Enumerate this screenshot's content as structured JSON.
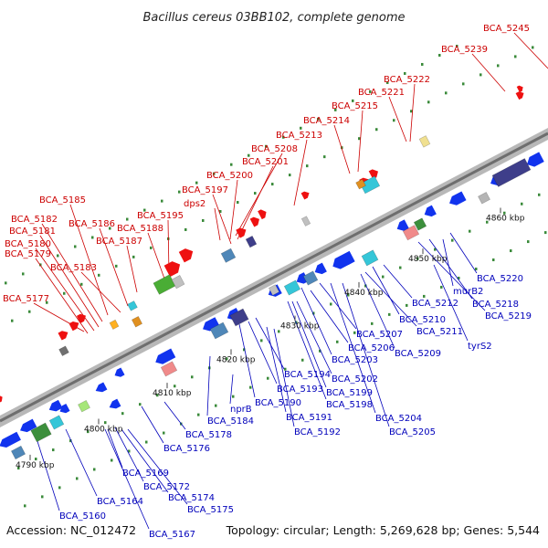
{
  "title": "Bacillus cereus 03BB102, complete genome",
  "footer": {
    "accession": "Accession: NC_012472",
    "summary": "Topology: circular; Length: 5,269,628 bp; Genes: 5,544"
  },
  "colors": {
    "top_labels": "#cc0000",
    "bottom_labels": "#0000bb",
    "backbone": "#888888",
    "forward_gene": "#ee1111",
    "reverse_gene": "#1133ee"
  },
  "kbp_ticks": [
    "4790 kbp",
    "4800 kbp",
    "4810 kbp",
    "4820 kbp",
    "4830 kbp",
    "4840 kbp",
    "4850 kbp",
    "4860 kbp"
  ],
  "top_labels": [
    "BCA_5245",
    "BCA_5239",
    "BCA_5222",
    "BCA_5221",
    "BCA_5215",
    "BCA_5214",
    "BCA_5213",
    "BCA_5208",
    "BCA_5201",
    "BCA_5200",
    "BCA_5197",
    "dps2",
    "BCA_5195",
    "BCA_5188",
    "BCA_5187",
    "BCA_5186",
    "BCA_5185",
    "BCA_5182",
    "BCA_5181",
    "BCA_5180",
    "BCA_5179",
    "BCA_5183",
    "BCA_5177"
  ],
  "bottom_labels": [
    "BCA_5220",
    "murB2",
    "BCA_5218",
    "BCA_5219",
    "BCA_5212",
    "BCA_5210",
    "BCA_5211",
    "tyrS2",
    "BCA_5207",
    "BCA_5206",
    "BCA_5209",
    "BCA_5203",
    "BCA_5202",
    "BCA_5199",
    "BCA_5198",
    "BCA_5194",
    "BCA_5193",
    "BCA_5190",
    "BCA_5191",
    "BCA_5192",
    "BCA_5204",
    "BCA_5205",
    "nprB",
    "BCA_5184",
    "BCA_5178",
    "BCA_5176",
    "BCA_5169",
    "BCA_5172",
    "BCA_5174",
    "BCA_5175",
    "BCA_5164",
    "BCA_5160",
    "BCA_5167"
  ]
}
